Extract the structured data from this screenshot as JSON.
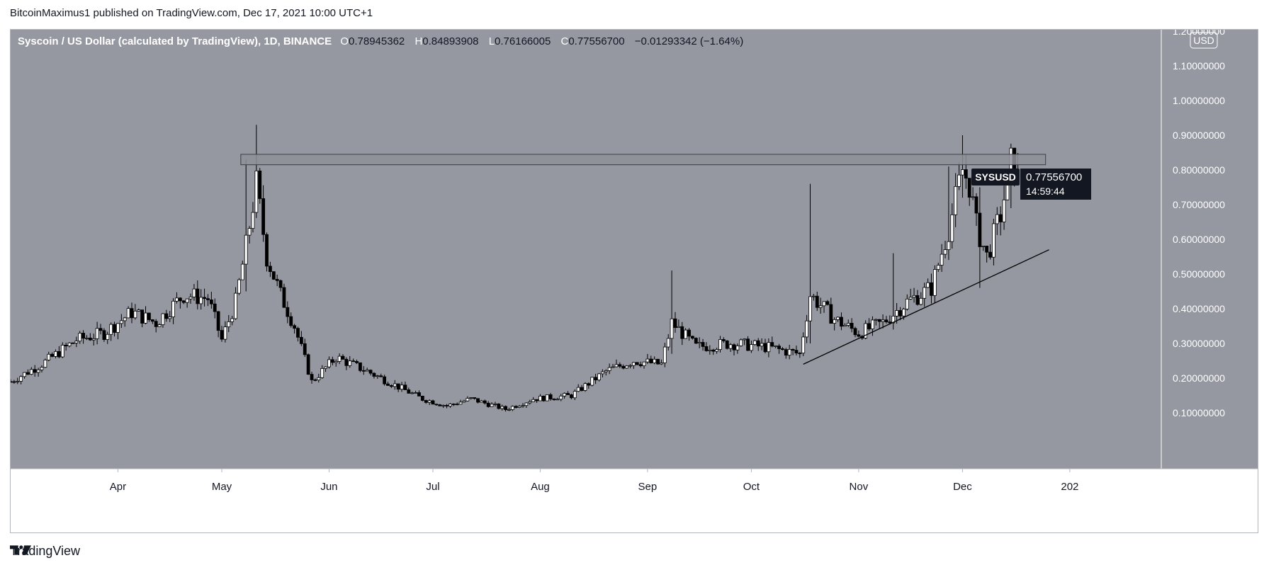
{
  "header": {
    "published": "BitcoinMaximus1 published on TradingView.com, Dec 17, 2021 10:00 UTC+1"
  },
  "footer": {
    "brand": "TradingView",
    "logo_icon": "tradingview-logo-icon"
  },
  "legend": {
    "symbol_title": "Syscoin / US Dollar (calculated by TradingView), 1D, BINANCE",
    "o_label": "O",
    "o_value": "0.78945362",
    "h_label": "H",
    "h_value": "0.84893908",
    "l_label": "L",
    "l_value": "0.76166005",
    "c_label": "C",
    "c_value": "0.77556700",
    "change": "−0.01293342 (−1.64%)"
  },
  "price_axis": {
    "currency": "USD",
    "ticks": [
      "1.20000000",
      "1.10000000",
      "1.00000000",
      "0.90000000",
      "0.80000000",
      "0.70000000",
      "0.60000000",
      "0.50000000",
      "0.40000000",
      "0.30000000",
      "0.20000000",
      "0.10000000"
    ]
  },
  "time_axis": {
    "ticks": [
      "Apr",
      "May",
      "Jun",
      "Jul",
      "Aug",
      "Sep",
      "Oct",
      "Nov",
      "Dec",
      "202"
    ]
  },
  "last_price": {
    "symbol": "SYSUSD",
    "price": "0.77556700",
    "countdown": "14:59:44"
  },
  "colors": {
    "pane_bg": "#9598a1",
    "candle": "#000000",
    "candle_fill_up": "#ffffff",
    "resistance_zone": "#8f9199",
    "label_bg": "#131722"
  },
  "chart_data": {
    "type": "candlestick",
    "title": "Syscoin / US Dollar (calculated by TradingView), 1D, BINANCE",
    "xlabel": "",
    "ylabel": "",
    "ylim": [
      0,
      1.2
    ],
    "x_range": [
      "2021-03-01",
      "2021-12-31"
    ],
    "grid": false,
    "close_path": [
      [
        "2021-03-01",
        0.19
      ],
      [
        "2021-03-10",
        0.24
      ],
      [
        "2021-03-20",
        0.31
      ],
      [
        "2021-03-28",
        0.33
      ],
      [
        "2021-04-05",
        0.39
      ],
      [
        "2021-04-12",
        0.36
      ],
      [
        "2021-04-20",
        0.44
      ],
      [
        "2021-04-27",
        0.43
      ],
      [
        "2021-05-01",
        0.31
      ],
      [
        "2021-05-05",
        0.42
      ],
      [
        "2021-05-08",
        0.58
      ],
      [
        "2021-05-11",
        0.76
      ],
      [
        "2021-05-14",
        0.55
      ],
      [
        "2021-05-18",
        0.44
      ],
      [
        "2021-05-22",
        0.35
      ],
      [
        "2021-05-27",
        0.19
      ],
      [
        "2021-06-03",
        0.26
      ],
      [
        "2021-06-12",
        0.22
      ],
      [
        "2021-06-20",
        0.18
      ],
      [
        "2021-06-28",
        0.14
      ],
      [
        "2021-07-05",
        0.12
      ],
      [
        "2021-07-12",
        0.14
      ],
      [
        "2021-07-22",
        0.11
      ],
      [
        "2021-07-30",
        0.14
      ],
      [
        "2021-08-10",
        0.15
      ],
      [
        "2021-08-20",
        0.22
      ],
      [
        "2021-08-28",
        0.25
      ],
      [
        "2021-09-05",
        0.24
      ],
      [
        "2021-09-08",
        0.36
      ],
      [
        "2021-09-15",
        0.29
      ],
      [
        "2021-09-25",
        0.3
      ],
      [
        "2021-10-05",
        0.29
      ],
      [
        "2021-10-15",
        0.27
      ],
      [
        "2021-10-18",
        0.44
      ],
      [
        "2021-10-25",
        0.37
      ],
      [
        "2021-11-01",
        0.33
      ],
      [
        "2021-11-08",
        0.36
      ],
      [
        "2021-11-15",
        0.42
      ],
      [
        "2021-11-22",
        0.46
      ],
      [
        "2021-11-27",
        0.63
      ],
      [
        "2021-12-01",
        0.8
      ],
      [
        "2021-12-03",
        0.76
      ],
      [
        "2021-12-05",
        0.64
      ],
      [
        "2021-12-08",
        0.55
      ],
      [
        "2021-12-12",
        0.67
      ],
      [
        "2021-12-15",
        0.82
      ],
      [
        "2021-12-17",
        0.775567
      ]
    ],
    "spikes": [
      {
        "date": "2021-05-11",
        "high": 0.93,
        "low": 0.72
      },
      {
        "date": "2021-05-08",
        "high": 0.83,
        "low": 0.45
      },
      {
        "date": "2021-09-08",
        "high": 0.51,
        "low": 0.27
      },
      {
        "date": "2021-10-18",
        "high": 0.76,
        "low": 0.3
      },
      {
        "date": "2021-11-11",
        "high": 0.56,
        "low": 0.34
      },
      {
        "date": "2021-11-27",
        "high": 0.81,
        "low": 0.55
      },
      {
        "date": "2021-12-01",
        "high": 0.9,
        "low": 0.72
      },
      {
        "date": "2021-12-06",
        "high": 0.75,
        "low": 0.46
      },
      {
        "date": "2021-12-15",
        "high": 0.85,
        "low": 0.69
      }
    ],
    "resistance_zone": {
      "x0": "2021-05-11",
      "x1": "2021-12-25",
      "y0": 0.815,
      "y1": 0.845
    },
    "support_line": {
      "x0": "2021-10-16",
      "y0": 0.24,
      "x1": "2021-12-26",
      "y1": 0.57
    },
    "last": {
      "open": 0.78945362,
      "high": 0.84893908,
      "low": 0.76166005,
      "close": 0.775567
    }
  }
}
